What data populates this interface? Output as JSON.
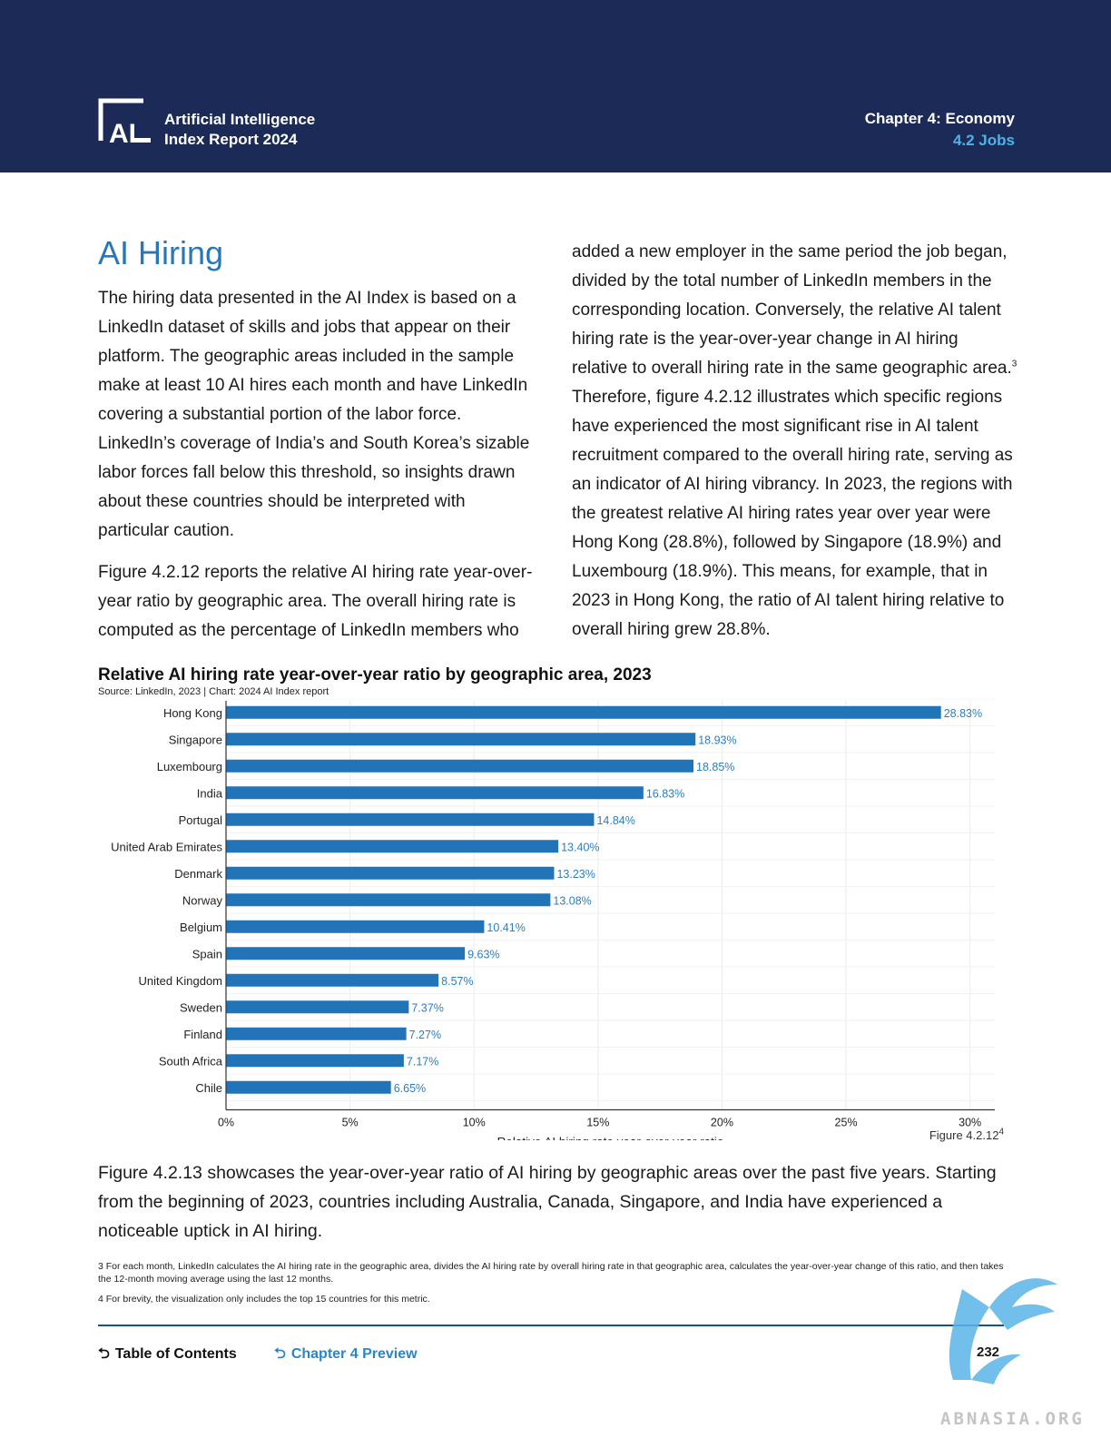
{
  "header": {
    "logo_text": "AI",
    "report_title_line1": "Artificial Intelligence",
    "report_title_line2": "Index Report 2024",
    "chapter": "Chapter 4: Economy",
    "section": "4.2 Jobs",
    "bg_color": "#1b2a57",
    "accent_color": "#4db3e6"
  },
  "section_title": "AI Hiring",
  "left_paragraphs": [
    "The hiring data presented in the AI Index is based on a LinkedIn dataset of skills and jobs that appear on their platform. The geographic areas included in the sample make at least 10 AI hires each month and have LinkedIn covering a substantial portion of the labor force. LinkedIn’s coverage of India’s and South Korea’s sizable labor forces fall below this threshold, so insights drawn about these countries should be interpreted with particular caution.",
    "Figure 4.2.12 reports the relative AI hiring rate year-over-year ratio by geographic area. The overall hiring rate is computed as the percentage of LinkedIn members who"
  ],
  "right_paragraph": {
    "before_sup": "added a new employer in the same period the job began, divided by the total number of LinkedIn members in the corresponding location. Conversely, the relative AI talent hiring rate is the year-over-year change in AI hiring relative to overall hiring rate in the same geographic area.",
    "sup": "3",
    "after_sup": " Therefore, figure 4.2.12 illustrates which specific regions have experienced the most significant rise in AI talent recruitment compared to the overall hiring rate, serving as an indicator of AI hiring vibrancy. In 2023, the regions with the greatest relative AI hiring rates year over year were Hong Kong (28.8%), followed by Singapore (18.9%) and Luxembourg (18.9%). This means, for example, that in 2023 in Hong Kong, the ratio of AI talent hiring relative to overall hiring grew 28.8%."
  },
  "chart_data": {
    "type": "bar",
    "orientation": "horizontal",
    "title": "Relative AI hiring rate year-over-year ratio by geographic area, 2023",
    "source": "Source: LinkedIn, 2023 | Chart: 2024 AI Index report",
    "categories": [
      "Hong Kong",
      "Singapore",
      "Luxembourg",
      "India",
      "Portugal",
      "United Arab Emirates",
      "Denmark",
      "Norway",
      "Belgium",
      "Spain",
      "United Kingdom",
      "Sweden",
      "Finland",
      "South Africa",
      "Chile"
    ],
    "values": [
      28.83,
      18.93,
      18.85,
      16.83,
      14.84,
      13.4,
      13.23,
      13.08,
      10.41,
      9.63,
      8.57,
      7.37,
      7.27,
      7.17,
      6.65
    ],
    "value_labels": [
      "28.83%",
      "18.93%",
      "18.85%",
      "16.83%",
      "14.84%",
      "13.40%",
      "13.23%",
      "13.08%",
      "10.41%",
      "9.63%",
      "8.57%",
      "7.37%",
      "7.27%",
      "7.17%",
      "6.65%"
    ],
    "xlabel": "Relative AI hiring rate year-over-year ratio",
    "ylabel": "",
    "xlim": [
      0,
      31
    ],
    "xticks": [
      0,
      5,
      10,
      15,
      20,
      25,
      30
    ],
    "xtick_labels": [
      "0%",
      "5%",
      "10%",
      "15%",
      "20%",
      "25%",
      "30%"
    ],
    "bar_color": "#2274b9",
    "label_color": "#2a7fc4",
    "grid": true
  },
  "figure_label": "Figure 4.2.12",
  "figure_label_sup": "4",
  "bottom_paragraph": "Figure 4.2.13 showcases the year-over-year ratio of AI hiring by geographic areas over the past five years. Starting from the beginning of 2023, countries including Australia, Canada, Singapore, and India have experienced a noticeable uptick in AI hiring.",
  "footnotes": [
    "3 For each month, LinkedIn calculates the AI hiring rate in the geographic area, divides the AI hiring rate by overall hiring rate in that geographic area, calculates the year-over-year change of this ratio, and then takes the 12-month moving average using the last 12 months.",
    "4 For brevity, the visualization only includes the top 15 countries for this metric."
  ],
  "footer": {
    "toc_label": "Table of Contents",
    "chapter_preview_label": "Chapter 4 Preview",
    "page_number": "232",
    "arrow_glyph": "⮌"
  },
  "watermark": {
    "text": "ABNASIA.ORG",
    "icon": "dragon-watermark-icon",
    "color": "#5ab4e8"
  }
}
